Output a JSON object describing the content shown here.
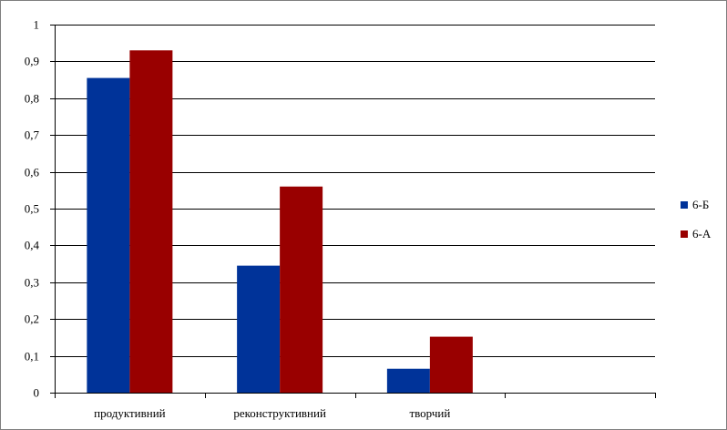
{
  "chart_data": {
    "type": "bar",
    "title": "",
    "xlabel": "",
    "ylabel": "",
    "categories": [
      "продуктивний",
      "реконструктивний",
      "творчий",
      ""
    ],
    "series": [
      {
        "name": "6-Б",
        "color": "#003399",
        "values": [
          0.855,
          0.345,
          0.065,
          null
        ]
      },
      {
        "name": "6-А",
        "color": "#990000",
        "values": [
          0.93,
          0.56,
          0.152,
          null
        ]
      }
    ],
    "ylim": [
      0,
      1
    ],
    "y_ticks": [
      "0",
      "0,1",
      "0,2",
      "0,3",
      "0,4",
      "0,5",
      "0,6",
      "0,7",
      "0,8",
      "0,9",
      "1"
    ],
    "grid": true,
    "legend_position": "right"
  }
}
